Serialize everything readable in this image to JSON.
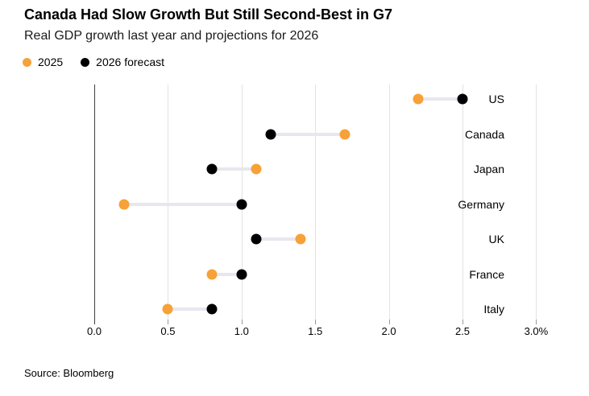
{
  "header": {
    "title": "Canada Had Slow Growth But Still Second-Best in G7",
    "subtitle": "Real GDP growth last year and projections for 2026"
  },
  "legend": [
    {
      "label": "2025",
      "color": "#F7A139"
    },
    {
      "label": "2026 forecast",
      "color": "#000000"
    }
  ],
  "source": "Source: Bloomberg",
  "chart_data": {
    "type": "scatter",
    "subtype": "dumbbell-dot-plot",
    "title": "Canada Had Slow Growth But Still Second-Best in G7",
    "subtitle": "Real GDP growth last year and projections for 2026",
    "categories": [
      "US",
      "Canada",
      "Japan",
      "Germany",
      "UK",
      "France",
      "Italy"
    ],
    "series": [
      {
        "name": "2025",
        "color": "#F7A139",
        "values": [
          2.2,
          1.7,
          1.1,
          0.2,
          1.4,
          0.8,
          0.5
        ]
      },
      {
        "name": "2026 forecast",
        "color": "#000000",
        "values": [
          2.5,
          1.2,
          0.8,
          1.0,
          1.1,
          1.0,
          0.8
        ]
      }
    ],
    "xlabel": "",
    "ylabel": "",
    "xlim": [
      0,
      3
    ],
    "xticks": [
      0,
      0.5,
      1,
      1.5,
      2,
      2.5,
      3
    ],
    "xtick_labels": [
      "0.0",
      "0.5",
      "1.0",
      "1.5",
      "2.0",
      "2.5",
      "3.0%"
    ],
    "grid": "vertical",
    "legend_position": "top-left",
    "connector_color": "#e8e6ee",
    "unit": "%"
  }
}
